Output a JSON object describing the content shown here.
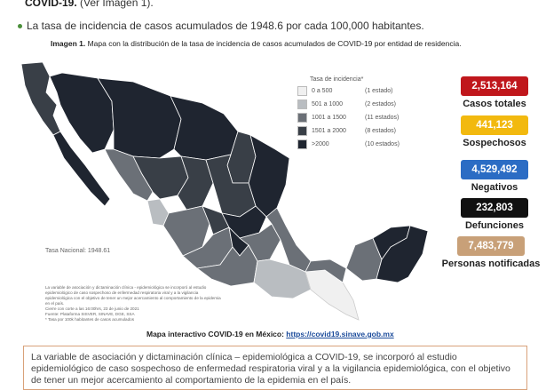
{
  "header": {
    "prefix_bold": "COVID-19.",
    "prefix_rest": " (Ver Imagen 1).",
    "bullet_text": "La tasa de incidencia de casos acumulados de 1948.6 por cada 100,000 habitantes."
  },
  "figure": {
    "caption_label": "Imagen 1.",
    "caption_text": " Mapa con la distribución de la tasa de incidencia de casos acumulados de COVID-19 por entidad de residencia.",
    "national_rate": "Tasa Nacional: 1948.61",
    "legend": {
      "title": "Tasa de incidencia*",
      "items": [
        {
          "range": "0  a   500",
          "count": "(1 estado)",
          "color": "#f0f0f0"
        },
        {
          "range": "501 a  1000",
          "count": "(2 estados)",
          "color": "#b9bdc1"
        },
        {
          "range": "1001 a  1500",
          "count": "(11 estados)",
          "color": "#6b7077"
        },
        {
          "range": "1501 a  2000",
          "count": "(8 estados)",
          "color": "#393f47"
        },
        {
          "range": ">2000",
          "count": "(10 estados)",
          "color": "#1f2530"
        }
      ]
    },
    "notes": [
      "La variable de asociación y dictaminación clínica - epidemiológica se incorporó al estudio",
      "epidemiológico de caso sospechoso de enfermedad respiratoria viral y a la vigilancia",
      "epidemiológica con el objetivo de tener un mejor acercamiento al comportamiento de la epidemia en el país.",
      "Cierre con corte a las 16:00hrs, 23 de junio de 2021",
      "Fuente: Plataforma SISVER, SINAVE, DGE, SSA",
      "* Tasa por 100k habitantes de casos acumulados"
    ]
  },
  "stats": [
    {
      "value": "2,513,164",
      "label": "Casos totales",
      "bg": "#c0171c",
      "fg": "#ffffff"
    },
    {
      "value": "441,123",
      "label": "Sospechosos",
      "bg": "#f2b90f",
      "fg": "#ffffff"
    },
    {
      "value": "4,529,492",
      "label": "Negativos",
      "bg": "#2b6cc4",
      "fg": "#ffffff"
    },
    {
      "value": "232,803",
      "label": "Defunciones",
      "bg": "#111111",
      "fg": "#ffffff"
    },
    {
      "value": "7,483,779",
      "label": "Personas notificadas",
      "bg": "#c8a078",
      "fg": "#ffffff"
    }
  ],
  "interactive": {
    "label": "Mapa interactivo COVID-19 en México: ",
    "link": "https://covid19.sinave.gob.mx"
  },
  "footer": {
    "text": "La variable de asociación y dictaminación clínica – epidemiológica a COVID-19, se incorporó al estudio epidemiológico de caso sospechoso de enfermedad respiratoria viral y a la vigilancia epidemiológica, con el objetivo de tener un mejor acercamiento al comportamiento de la epidemia en el país."
  }
}
